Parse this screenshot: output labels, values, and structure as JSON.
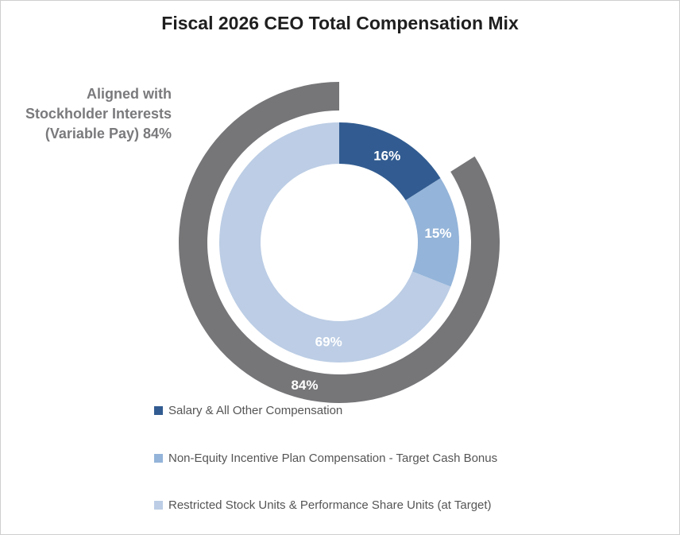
{
  "chart_data": {
    "type": "pie",
    "title": "Fiscal 2026 CEO Total Compensation Mix",
    "inner_ring": {
      "slices": [
        {
          "label": "Salary & All Other Compensation",
          "value": 16,
          "display": "16%",
          "color": "#325c91"
        },
        {
          "label": "Non-Equity Incentive Plan Compensation - Target Cash Bonus",
          "value": 15,
          "display": "15%",
          "color": "#94b4d9"
        },
        {
          "label": "Restricted Stock Units & Performance Share Units (at Target)",
          "value": 69,
          "display": "69%",
          "color": "#bccde5"
        }
      ]
    },
    "outer_ring": {
      "label": "Aligned with Stockholder Interests (Variable Pay) 84%",
      "value": 84,
      "display": "84%",
      "color": "#767679"
    },
    "legend_position": "bottom"
  }
}
